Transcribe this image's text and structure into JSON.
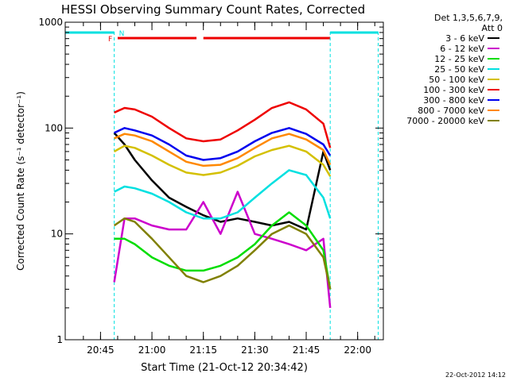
{
  "chart_data": {
    "type": "line",
    "title": "HESSI Observing Summary Count Rates, Corrected",
    "xlabel": "Start Time (21-Oct-12 20:34:42)",
    "ylabel": "Corrected Count Rate (s⁻¹ detector⁻¹)",
    "yscale": "log",
    "ylim": [
      1,
      1000
    ],
    "xlim": [
      "20:34:42",
      "22:07:30"
    ],
    "x_ticks": [
      "20:45",
      "21:00",
      "21:15",
      "21:30",
      "21:45",
      "22:00"
    ],
    "y_ticks": [
      "1",
      "10",
      "100",
      "1000"
    ],
    "timestamp": "22-Oct-2012 14:12",
    "legend_header": [
      "Det 1,3,5,6,7,9,",
      "Att 0"
    ],
    "legend_position": "right",
    "x": [
      "20:49",
      "20:52",
      "20:55",
      "21:00",
      "21:05",
      "21:10",
      "21:15",
      "21:20",
      "21:25",
      "21:30",
      "21:35",
      "21:40",
      "21:45",
      "21:50",
      "21:52"
    ],
    "series": [
      {
        "name": "3 - 6 keV",
        "color": "#000000",
        "values": [
          90,
          70,
          50,
          32,
          22,
          18,
          15,
          13,
          14,
          13,
          12,
          13,
          11,
          60,
          40
        ]
      },
      {
        "name": "6 - 12 keV",
        "color": "#cc00cc",
        "values": [
          3.5,
          14,
          14,
          12,
          11,
          11,
          20,
          10,
          25,
          10,
          9,
          8,
          7,
          9,
          2
        ]
      },
      {
        "name": "12 - 25 keV",
        "color": "#00dd00",
        "values": [
          9,
          9,
          8,
          6,
          5,
          4.5,
          4.5,
          5,
          6,
          8,
          12,
          16,
          12,
          7,
          3
        ]
      },
      {
        "name": "25 - 50 keV",
        "color": "#00e0e0",
        "values": [
          25,
          28,
          27,
          24,
          20,
          16,
          14,
          14,
          16,
          22,
          30,
          40,
          36,
          22,
          14
        ]
      },
      {
        "name": "50 - 100 keV",
        "color": "#d4c000",
        "values": [
          60,
          68,
          65,
          55,
          45,
          38,
          36,
          38,
          44,
          54,
          62,
          68,
          60,
          45,
          35
        ]
      },
      {
        "name": "100 - 300 keV",
        "color": "#ee0000",
        "values": [
          140,
          155,
          150,
          128,
          100,
          80,
          75,
          78,
          95,
          120,
          155,
          175,
          150,
          110,
          65
        ]
      },
      {
        "name": "300 - 800 keV",
        "color": "#0000ee",
        "values": [
          90,
          100,
          95,
          85,
          70,
          55,
          50,
          52,
          60,
          75,
          90,
          100,
          88,
          70,
          55
        ]
      },
      {
        "name": "800 - 7000 keV",
        "color": "#ff8800",
        "values": [
          80,
          88,
          85,
          75,
          60,
          48,
          44,
          45,
          52,
          65,
          80,
          88,
          78,
          62,
          45
        ]
      },
      {
        "name": "7000 - 20000 keV",
        "color": "#808000",
        "values": [
          12,
          14,
          13,
          9,
          6,
          4,
          3.5,
          4,
          5,
          7,
          10,
          12,
          10,
          6,
          3
        ]
      }
    ],
    "flags": [
      {
        "label": "F",
        "color": "#ee0000",
        "intervals": [
          [
            "20:50",
            "21:13"
          ],
          [
            "21:15",
            "21:52"
          ]
        ]
      },
      {
        "label": "N",
        "color": "#00e0e0",
        "intervals": [
          [
            "20:34:42",
            "20:49"
          ],
          [
            "21:52",
            "22:06"
          ]
        ]
      }
    ],
    "event_markers": [
      "20:49",
      "21:52",
      "22:06"
    ]
  }
}
